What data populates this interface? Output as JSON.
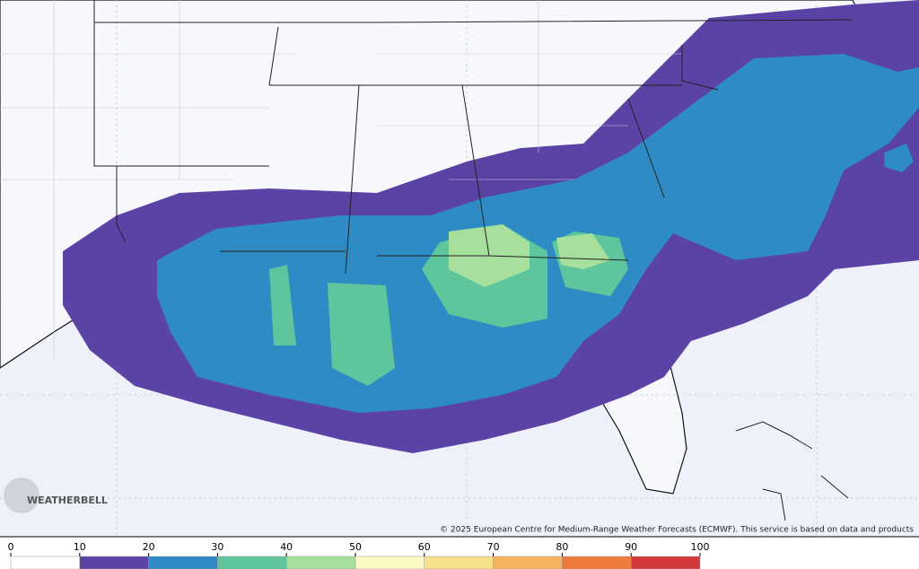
{
  "credit": "© 2025 European Centre for Medium-Range Weather Forecasts (ECMWF). This service is based on data and products",
  "logo": "WEATHERBELL",
  "colorbar": {
    "ticks": [
      0,
      10,
      20,
      30,
      40,
      50,
      60,
      70,
      80,
      90,
      100
    ],
    "colors": [
      "#ffffff",
      "#5b43a6",
      "#2f8bc4",
      "#5ec59c",
      "#a6e09c",
      "#fbfac4",
      "#f7e08c",
      "#f6b45f",
      "#ee7b3c",
      "#d2393a"
    ]
  }
}
